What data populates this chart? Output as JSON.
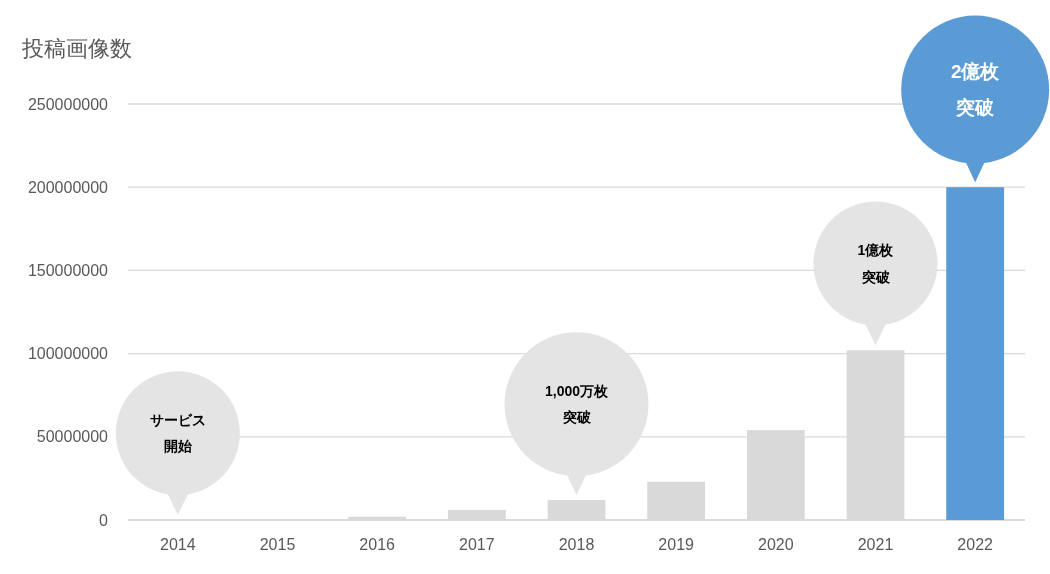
{
  "chart_data": {
    "type": "bar",
    "ylabel": "投稿画像数",
    "categories": [
      "2014",
      "2015",
      "2016",
      "2017",
      "2018",
      "2019",
      "2020",
      "2021",
      "2022"
    ],
    "values": [
      0,
      0,
      2000000,
      6000000,
      12000000,
      23000000,
      54000000,
      102000000,
      200000000
    ],
    "colors": [
      "#d9d9d9",
      "#d9d9d9",
      "#d9d9d9",
      "#d9d9d9",
      "#d9d9d9",
      "#d9d9d9",
      "#d9d9d9",
      "#d9d9d9",
      "#5b9bd5"
    ],
    "ylim": [
      0,
      250000000
    ],
    "yticks": [
      0,
      50000000,
      100000000,
      150000000,
      200000000,
      250000000
    ],
    "grid": "y",
    "annotations": [
      "サービス開始",
      "1,000万枚突破",
      "1億枚突破",
      "2億枚突破"
    ]
  }
}
